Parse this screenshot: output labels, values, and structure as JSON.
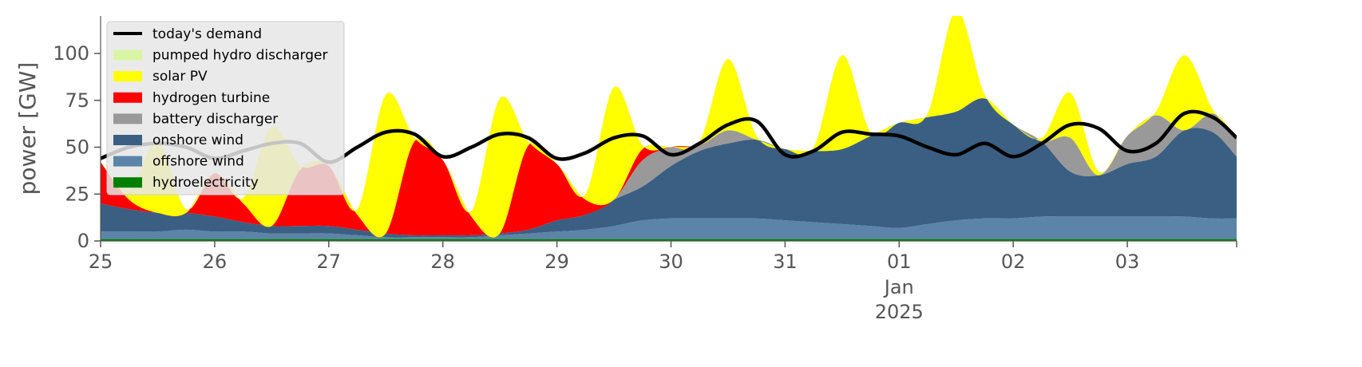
{
  "chart_data": {
    "type": "area",
    "title": "",
    "xlabel": "",
    "ylabel": "power [GW]",
    "ylim": [
      0,
      120
    ],
    "xlim": [
      "2024-12-25",
      "2025-01-03T23:00"
    ],
    "y_ticks": [
      "0",
      "25",
      "50",
      "75",
      "100"
    ],
    "x_ticks": [
      "25",
      "26",
      "27",
      "28",
      "29",
      "30",
      "31",
      "01",
      "02",
      "03"
    ],
    "x_tick_sublabel": [
      "Jan",
      "2025"
    ],
    "x": [
      "2024-12-25T00:00",
      "2024-12-25T06:00",
      "2024-12-25T12:00",
      "2024-12-25T18:00",
      "2024-12-26T00:00",
      "2024-12-26T06:00",
      "2024-12-26T12:00",
      "2024-12-26T18:00",
      "2024-12-27T00:00",
      "2024-12-27T06:00",
      "2024-12-27T12:00",
      "2024-12-27T18:00",
      "2024-12-28T00:00",
      "2024-12-28T06:00",
      "2024-12-28T12:00",
      "2024-12-28T18:00",
      "2024-12-29T00:00",
      "2024-12-29T06:00",
      "2024-12-29T12:00",
      "2024-12-29T18:00",
      "2024-12-30T00:00",
      "2024-12-30T06:00",
      "2024-12-30T12:00",
      "2024-12-30T18:00",
      "2024-12-31T00:00",
      "2024-12-31T06:00",
      "2024-12-31T12:00",
      "2024-12-31T18:00",
      "2025-01-01T00:00",
      "2025-01-01T06:00",
      "2025-01-01T12:00",
      "2025-01-01T18:00",
      "2025-01-02T00:00",
      "2025-01-02T06:00",
      "2025-01-02T12:00",
      "2025-01-02T18:00",
      "2025-01-03T00:00",
      "2025-01-03T06:00",
      "2025-01-03T12:00",
      "2025-01-03T18:00",
      "2025-01-03T23:00"
    ],
    "series": [
      {
        "name": "hydroelectricity",
        "color": "#008000",
        "kind": "area",
        "values": [
          1,
          1,
          1,
          1,
          1,
          1,
          1,
          1,
          1,
          1,
          1,
          1,
          1,
          1,
          1,
          1,
          1,
          1,
          1,
          1,
          1,
          1,
          1,
          1,
          1,
          1,
          1,
          1,
          1,
          1,
          1,
          1,
          1,
          1,
          1,
          1,
          1,
          1,
          1,
          1,
          1
        ]
      },
      {
        "name": "offshore wind",
        "color": "#5b84a8",
        "kind": "area",
        "values": [
          4,
          4,
          4,
          5,
          4,
          4,
          3,
          3,
          3,
          2,
          1,
          1,
          1,
          1,
          2,
          3,
          4,
          5,
          7,
          10,
          11,
          11,
          11,
          11,
          10,
          9,
          8,
          7,
          6,
          8,
          10,
          11,
          11,
          12,
          12,
          12,
          12,
          12,
          12,
          11,
          11
        ]
      },
      {
        "name": "onshore wind",
        "color": "#3b5f82",
        "kind": "area",
        "values": [
          15,
          12,
          10,
          9,
          8,
          5,
          4,
          4,
          4,
          3,
          2,
          1,
          1,
          1,
          1,
          2,
          6,
          8,
          14,
          18,
          28,
          36,
          40,
          42,
          38,
          38,
          40,
          48,
          56,
          57,
          58,
          64,
          50,
          40,
          24,
          22,
          28,
          32,
          46,
          46,
          33
        ]
      },
      {
        "name": "battery discharger",
        "color": "#999999",
        "kind": "area",
        "values": [
          0,
          0,
          0,
          0,
          0,
          0,
          0,
          0,
          0,
          0,
          0,
          0,
          0,
          0,
          0,
          0,
          0,
          0,
          0,
          14,
          10,
          3,
          7,
          0,
          0,
          0,
          0,
          0,
          0,
          0,
          0,
          0,
          0,
          0,
          18,
          0,
          15,
          22,
          0,
          10,
          10
        ]
      },
      {
        "name": "hydrogen turbine",
        "color": "#ff0000",
        "kind": "area",
        "values": [
          22,
          5,
          0,
          0,
          23,
          10,
          0,
          30,
          32,
          8,
          0,
          50,
          40,
          10,
          0,
          45,
          30,
          8,
          0,
          6,
          0,
          0,
          0,
          0,
          0,
          0,
          0,
          0,
          0,
          0,
          0,
          0,
          0,
          0,
          0,
          0,
          0,
          0,
          0,
          0,
          0
        ]
      },
      {
        "name": "solar PV",
        "color": "#ffff00",
        "kind": "area",
        "values": [
          0,
          5,
          38,
          2,
          0,
          3,
          53,
          2,
          0,
          3,
          74,
          2,
          0,
          3,
          72,
          2,
          0,
          3,
          60,
          2,
          0,
          2,
          38,
          2,
          0,
          2,
          50,
          2,
          0,
          2,
          54,
          2,
          0,
          2,
          24,
          2,
          0,
          2,
          40,
          2,
          0
        ]
      },
      {
        "name": "pumped hydro discharger",
        "color": "#d9f5a4",
        "kind": "area",
        "values": [
          0,
          0,
          0,
          0,
          0,
          0,
          0,
          0,
          0,
          0,
          0,
          0,
          0,
          0,
          0,
          0,
          0,
          0,
          0,
          0,
          0,
          0,
          0,
          0,
          0,
          0,
          0,
          0,
          0,
          0,
          0,
          0,
          0,
          0,
          0,
          0,
          0,
          0,
          0,
          0,
          0
        ]
      },
      {
        "name": "today's demand",
        "color": "#000000",
        "kind": "line",
        "values": [
          44,
          50,
          52,
          50,
          44,
          48,
          52,
          52,
          42,
          50,
          58,
          57,
          45,
          50,
          57,
          55,
          44,
          47,
          55,
          56,
          46,
          52,
          62,
          64,
          46,
          48,
          58,
          57,
          56,
          50,
          46,
          52,
          45,
          52,
          62,
          60,
          48,
          52,
          68,
          66,
          55
        ]
      }
    ],
    "legend_placement": "upper-left",
    "grid": false,
    "background": "#ffffff",
    "legend_background": "#e6e6e6"
  }
}
